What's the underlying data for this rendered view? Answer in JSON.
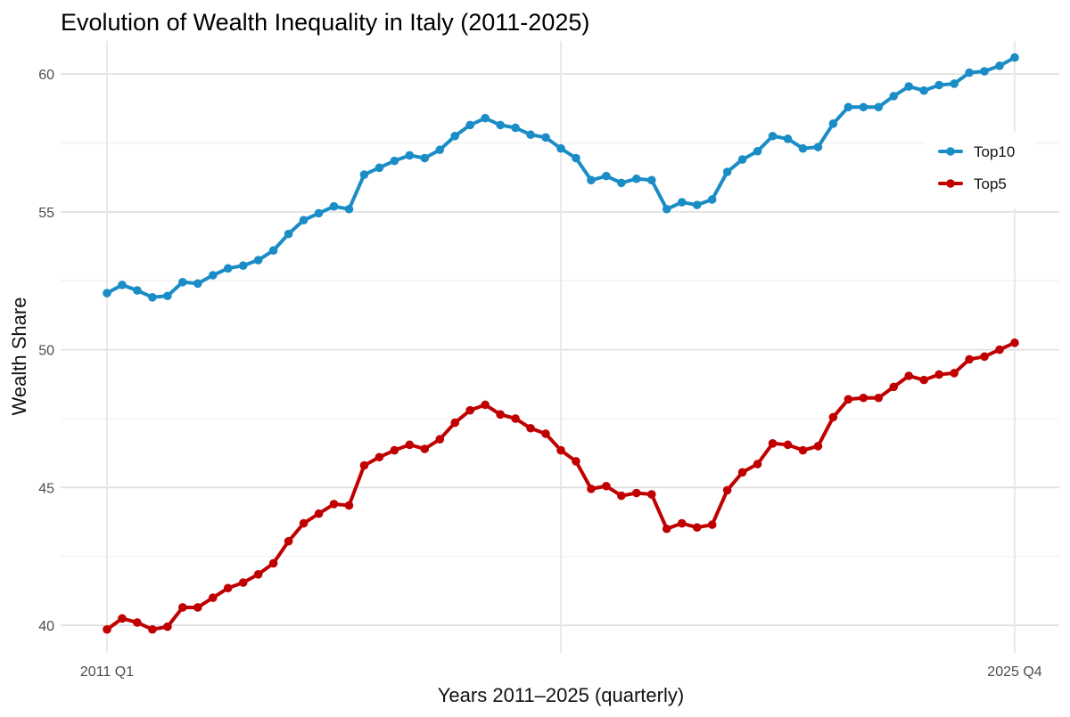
{
  "chart_data": {
    "type": "line",
    "title": "Evolution of Wealth Inequality in Italy (2011-2025)",
    "xlabel": "Years 2011–2025 (quarterly)",
    "ylabel": "Wealth Share",
    "x_tick_labels": [
      "2011 Q1",
      "2025 Q4"
    ],
    "y_ticks": [
      40,
      45,
      50,
      55,
      60
    ],
    "ylim": [
      39.0,
      61.2
    ],
    "grid": true,
    "legend_position": "top-right",
    "series": [
      {
        "name": "Top10",
        "color": "#1a8cc6",
        "values": [
          52.05,
          52.35,
          52.15,
          51.9,
          51.95,
          52.45,
          52.4,
          52.7,
          52.95,
          53.05,
          53.25,
          53.6,
          54.2,
          54.7,
          54.95,
          55.2,
          55.1,
          56.35,
          56.6,
          56.85,
          57.05,
          56.95,
          57.25,
          57.75,
          58.15,
          58.4,
          58.15,
          58.05,
          57.8,
          57.7,
          57.3,
          56.95,
          56.15,
          56.3,
          56.05,
          56.2,
          56.15,
          55.1,
          55.35,
          55.25,
          55.45,
          56.45,
          56.9,
          57.2,
          57.75,
          57.65,
          57.3,
          57.35,
          58.2,
          58.8,
          58.8,
          58.8,
          59.2,
          59.55,
          59.4,
          59.6,
          59.65,
          60.05,
          60.1,
          60.3,
          60.6
        ]
      },
      {
        "name": "Top5",
        "color": "#c00000",
        "values": [
          39.85,
          40.25,
          40.1,
          39.85,
          39.95,
          40.65,
          40.65,
          41.0,
          41.35,
          41.55,
          41.85,
          42.25,
          43.05,
          43.7,
          44.05,
          44.4,
          44.35,
          45.8,
          46.1,
          46.35,
          46.55,
          46.4,
          46.75,
          47.35,
          47.8,
          48.0,
          47.65,
          47.5,
          47.15,
          46.95,
          46.35,
          45.95,
          44.95,
          45.05,
          44.7,
          44.8,
          44.75,
          43.5,
          43.7,
          43.55,
          43.65,
          44.9,
          45.55,
          45.85,
          46.6,
          46.55,
          46.35,
          46.5,
          47.55,
          48.2,
          48.25,
          48.25,
          48.65,
          49.05,
          48.9,
          49.1,
          49.15,
          49.65,
          49.75,
          50.0,
          50.25
        ]
      }
    ]
  }
}
